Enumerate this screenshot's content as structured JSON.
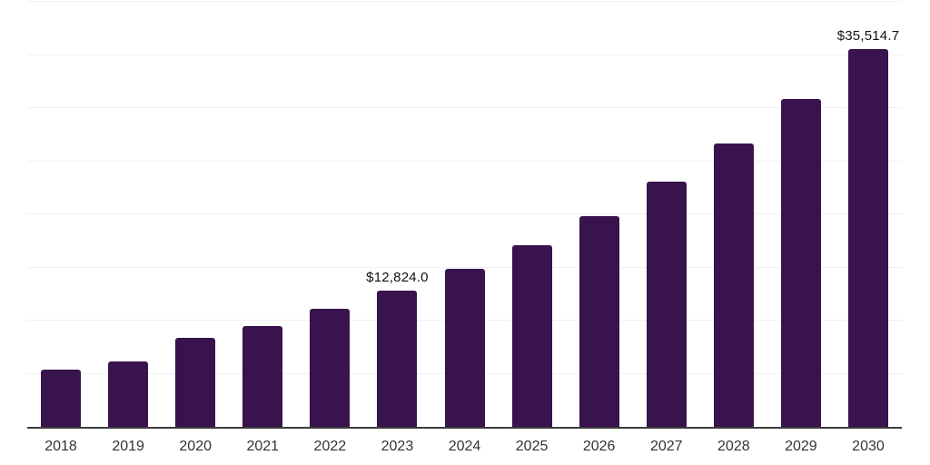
{
  "chart": {
    "bar_color": "#38134E",
    "gridline_color": "#F0F0F2",
    "axis_color": "#3D3D3D",
    "value_label_color": "#111111",
    "tick_label_color": "#333333",
    "background_color": "#FFFFFF"
  },
  "chart_data": {
    "type": "bar",
    "categories": [
      "2018",
      "2019",
      "2020",
      "2021",
      "2022",
      "2023",
      "2024",
      "2025",
      "2026",
      "2027",
      "2028",
      "2029",
      "2030"
    ],
    "values": [
      5385,
      6155,
      8375,
      9490,
      11110,
      12824.0,
      14870,
      17100,
      19830,
      23080,
      26670,
      30855,
      35514.7
    ],
    "values_note": "only 2023 and 2030 are labeled in the image; other values estimated from bar heights against gridlines",
    "data_labels": {
      "2023": "$12,824.0",
      "2030": "$35,514.7"
    },
    "ylim": [
      0,
      40000
    ],
    "gridline_step": 5000,
    "grid": true,
    "legend": false,
    "y_axis_tick_labels": false
  }
}
